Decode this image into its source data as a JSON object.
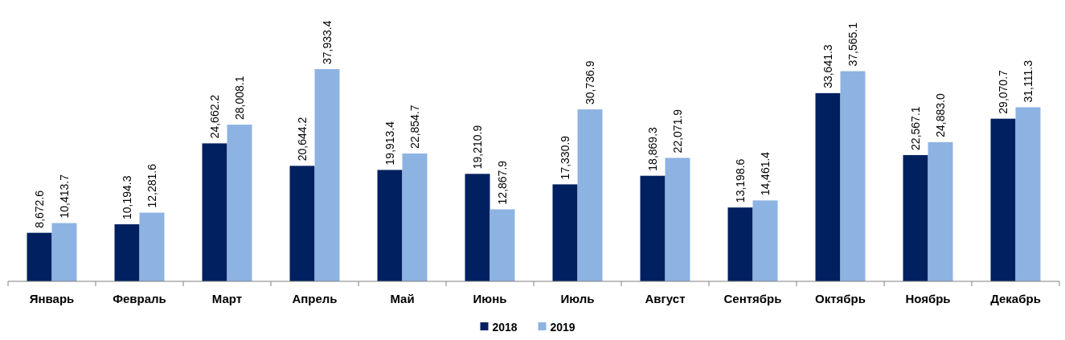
{
  "chart_data": {
    "type": "bar",
    "categories": [
      "Январь",
      "Февраль",
      "Март",
      "Апрель",
      "Май",
      "Июнь",
      "Июль",
      "Август",
      "Сентябрь",
      "Октябрь",
      "Ноябрь",
      "Декабрь"
    ],
    "series": [
      {
        "name": "2018",
        "color": "#002060",
        "values": [
          8672.6,
          10194.3,
          24662.2,
          20644.2,
          19913.4,
          19210.9,
          17330.9,
          18869.3,
          13198.6,
          33641.3,
          22567.1,
          29070.7
        ],
        "value_labels": [
          "8,672.6",
          "10,194.3",
          "24,662.2",
          "20,644.2",
          "19,913.4",
          "19,210.9",
          "17,330.9",
          "18,869.3",
          "13,198.6",
          "33,641.3",
          "22,567.1",
          "29,070.7"
        ]
      },
      {
        "name": "2019",
        "color": "#8db3e2",
        "values": [
          10413.7,
          12281.6,
          28008.1,
          37933.4,
          22854.7,
          12867.9,
          30736.9,
          22071.9,
          14461.4,
          37565.1,
          24883.0,
          31111.3
        ],
        "value_labels": [
          "10,413.7",
          "12,281.6",
          "28,008.1",
          "37,933.4",
          "22,854.7",
          "12,867.9",
          "30,736.9",
          "22,071.9",
          "14,461.4",
          "37,565.1",
          "24,883.0",
          "31,111.3"
        ]
      }
    ],
    "legend": "bottom"
  }
}
